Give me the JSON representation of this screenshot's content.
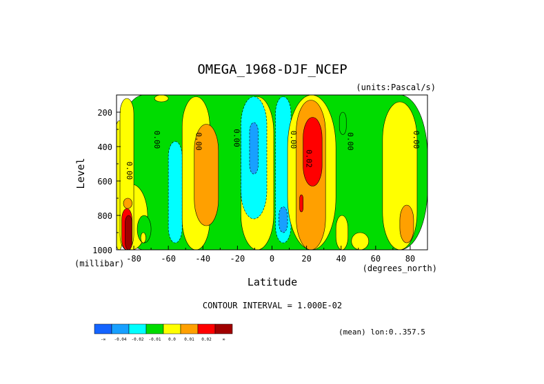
{
  "chart_data": {
    "type": "heatmap",
    "title": "OMEGA_1968-DJF_NCEP",
    "units": "(units:Pascal/s)",
    "xlabel": "Latitude",
    "ylabel": "Level",
    "x_unit_label": "(degrees_north)",
    "y_unit_label": "(millibar)",
    "xlim": [
      -90,
      90
    ],
    "ylim": [
      1000,
      100
    ],
    "x_ticks": [
      "-80",
      "-60",
      "-40",
      "-20",
      "0",
      "20",
      "40",
      "60",
      "80"
    ],
    "x_tick_values": [
      -80,
      -60,
      -40,
      -20,
      0,
      20,
      40,
      60,
      80
    ],
    "y_ticks": [
      "200",
      "400",
      "600",
      "800",
      "1000"
    ],
    "y_tick_values": [
      200,
      400,
      600,
      800,
      1000
    ],
    "contour_interval_text": "CONTOUR INTERVAL = 1.000E-02",
    "mean_text": "(mean) lon:0..357.5",
    "contour_labels": [
      {
        "text": "0.00",
        "lat": -84,
        "lev": 540
      },
      {
        "text": "0.00",
        "lat": -68,
        "lev": 360
      },
      {
        "text": "0.00",
        "lat": -44,
        "lev": 370
      },
      {
        "text": "0.00",
        "lat": -22,
        "lev": 350
      },
      {
        "text": "0.00",
        "lat": 11,
        "lev": 360
      },
      {
        "text": "0.02",
        "lat": 20,
        "lev": 470
      },
      {
        "text": "0.00",
        "lat": 44,
        "lev": 370
      },
      {
        "text": "0.00",
        "lat": 82,
        "lev": 360
      }
    ],
    "levels": [
      {
        "label": "-∞",
        "color": "#1464ff"
      },
      {
        "label": "-0.04",
        "color": "#18a0ff"
      },
      {
        "label": "-0.02",
        "color": "#00ffff"
      },
      {
        "label": "-0.01",
        "color": "#00dc00"
      },
      {
        "label": "0.0",
        "color": "#ffff00"
      },
      {
        "label": "0.01",
        "color": "#ffa000"
      },
      {
        "label": "0.02",
        "color": "#ff0000"
      },
      {
        "label": "∞",
        "color": "#a00000"
      }
    ],
    "colorbar_labels": [
      "-∞",
      "-0.04",
      "-0.02",
      "-0.01",
      "0.0",
      "0.01",
      "0.02",
      "∞"
    ],
    "regions": [
      {
        "lat": [
          -90,
          90
        ],
        "lev": [
          100,
          1000
        ],
        "level": 3
      },
      {
        "lat": [
          -90,
          -72
        ],
        "lev": [
          620,
          1000
        ],
        "level": 4
      },
      {
        "lat": [
          -90,
          -87
        ],
        "lev": [
          250,
          1000
        ],
        "level": 4
      },
      {
        "lat": [
          -88,
          -80
        ],
        "lev": [
          120,
          1000
        ],
        "level": 4
      },
      {
        "lat": [
          -86,
          -81
        ],
        "lev": [
          700,
          760
        ],
        "level": 5
      },
      {
        "lat": [
          -87,
          -81
        ],
        "lev": [
          760,
          1000
        ],
        "level": 6
      },
      {
        "lat": [
          -85,
          -81
        ],
        "lev": [
          800,
          1000
        ],
        "level": 7
      },
      {
        "lat": [
          -78,
          -70
        ],
        "lev": [
          800,
          960
        ],
        "level": 3
      },
      {
        "lat": [
          -76,
          -73
        ],
        "lev": [
          900,
          960
        ],
        "level": 4
      },
      {
        "lat": [
          -68,
          -60
        ],
        "lev": [
          100,
          140
        ],
        "level": 4
      },
      {
        "lat": [
          -60,
          -52
        ],
        "lev": [
          370,
          960
        ],
        "level": 2
      },
      {
        "lat": [
          -52,
          -36
        ],
        "lev": [
          110,
          1000
        ],
        "level": 4
      },
      {
        "lat": [
          -45,
          -31
        ],
        "lev": [
          270,
          860
        ],
        "level": 5
      },
      {
        "lat": [
          -18,
          1
        ],
        "lev": [
          110,
          1000
        ],
        "level": 4
      },
      {
        "lat": [
          -18,
          -3
        ],
        "lev": [
          110,
          820
        ],
        "level": 2
      },
      {
        "lat": [
          -13,
          -8
        ],
        "lev": [
          260,
          560
        ],
        "level": 1
      },
      {
        "lat": [
          2,
          11
        ],
        "lev": [
          110,
          960
        ],
        "level": 2
      },
      {
        "lat": [
          4,
          9
        ],
        "lev": [
          750,
          900
        ],
        "level": 1
      },
      {
        "lat": [
          9,
          37
        ],
        "lev": [
          100,
          1000
        ],
        "level": 4
      },
      {
        "lat": [
          14,
          31
        ],
        "lev": [
          130,
          1000
        ],
        "level": 5
      },
      {
        "lat": [
          18,
          29
        ],
        "lev": [
          230,
          630
        ],
        "level": 6
      },
      {
        "lat": [
          16,
          18
        ],
        "lev": [
          680,
          780
        ],
        "level": 6
      },
      {
        "lat": [
          39,
          43
        ],
        "lev": [
          200,
          330
        ],
        "level": 3
      },
      {
        "lat": [
          37,
          44
        ],
        "lev": [
          800,
          1000
        ],
        "level": 4
      },
      {
        "lat": [
          46,
          56
        ],
        "lev": [
          900,
          1000
        ],
        "level": 4
      },
      {
        "lat": [
          64,
          84
        ],
        "lev": [
          140,
          1000
        ],
        "level": 4
      },
      {
        "lat": [
          74,
          82
        ],
        "lev": [
          740,
          960
        ],
        "level": 5
      }
    ]
  }
}
